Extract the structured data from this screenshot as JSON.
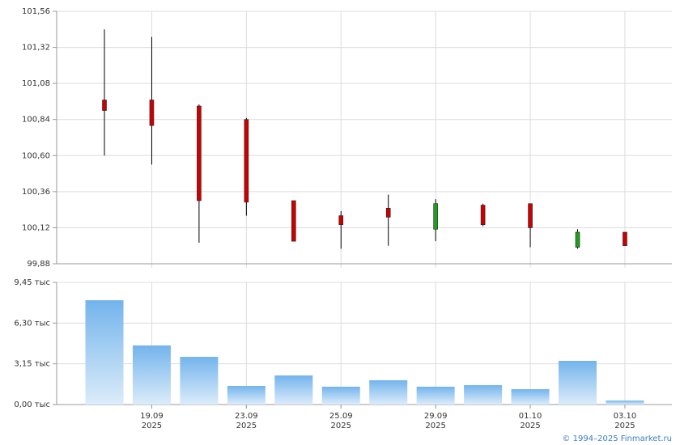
{
  "chart_data": [
    {
      "type": "candlestick",
      "open": [
        100.97,
        100.97,
        100.93,
        100.84,
        100.3,
        100.2,
        100.25,
        100.11,
        100.27,
        100.28,
        99.99,
        100.09
      ],
      "high": [
        101.44,
        101.39,
        100.94,
        100.85,
        100.3,
        100.23,
        100.34,
        100.31,
        100.28,
        100.28,
        100.11,
        100.09
      ],
      "low": [
        100.6,
        100.54,
        100.02,
        100.2,
        100.03,
        99.98,
        100.0,
        100.03,
        100.13,
        99.99,
        99.98,
        100.0
      ],
      "close": [
        100.9,
        100.8,
        100.3,
        100.29,
        100.03,
        100.14,
        100.19,
        100.28,
        100.14,
        100.12,
        100.09,
        100.0
      ],
      "up_color": "#1f9e1f",
      "down_color": "#cc0000",
      "ylim": [
        99.88,
        101.56
      ],
      "yticks": [
        {
          "value": 99.88,
          "label": "99,88"
        },
        {
          "value": 100.12,
          "label": "100,12"
        },
        {
          "value": 100.36,
          "label": "100,36"
        },
        {
          "value": 100.6,
          "label": "100,60"
        },
        {
          "value": 100.84,
          "label": "100,84"
        },
        {
          "value": 101.08,
          "label": "101,08"
        },
        {
          "value": 101.32,
          "label": "101,32"
        },
        {
          "value": 101.56,
          "label": "101,56"
        }
      ],
      "grid": true
    },
    {
      "type": "bar",
      "categories": [
        null,
        "19.09\n2025",
        null,
        "23.09\n2025",
        null,
        "25.09\n2025",
        null,
        "29.09\n2025",
        null,
        "01.10\n2025",
        null,
        "03.10\n2025"
      ],
      "values": [
        8.07,
        4.57,
        3.69,
        1.44,
        2.25,
        1.38,
        1.88,
        1.38,
        1.5,
        1.19,
        3.38,
        0.31
      ],
      "color": "#7ab8ec",
      "ylim": [
        0,
        9.45
      ],
      "yticks": [
        {
          "value": 0,
          "label": "0,00 тыс"
        },
        {
          "value": 3.15,
          "label": "3,15 тыс"
        },
        {
          "value": 6.3,
          "label": "6,30 тыс"
        },
        {
          "value": 9.45,
          "label": "9,45 тыс"
        }
      ],
      "grid": true
    }
  ],
  "copyright": "© 1994–2025 Finmarket.ru"
}
